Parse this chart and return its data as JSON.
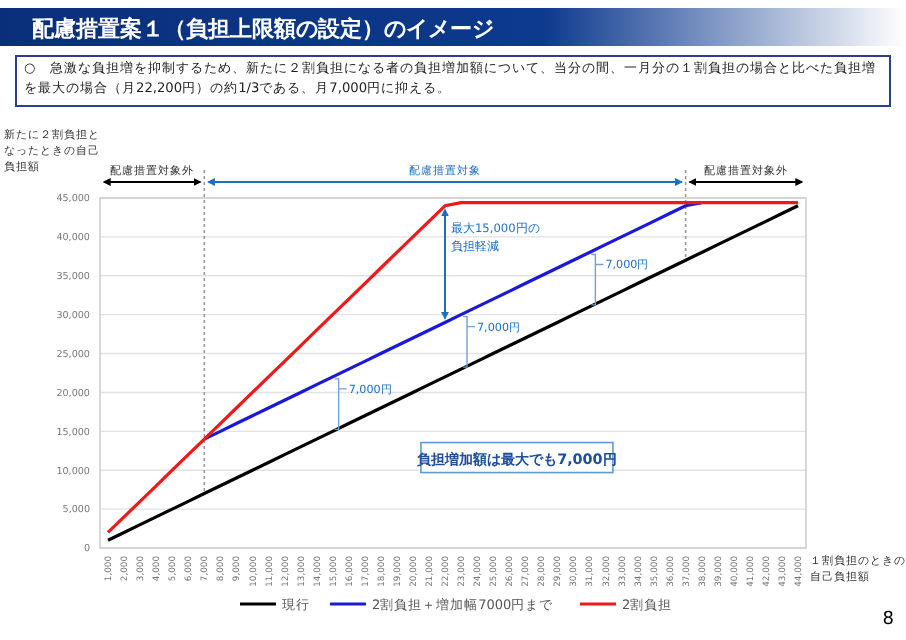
{
  "chart_data": {
    "type": "line",
    "title": "配慮措置案１（負担上限額の設定）のイメージ",
    "subtitle": "○　急激な負担増を抑制するため、新たに２割負担になる者の負担増加額について、当分の間、一月分の１割負担の場合と比べた負担増を最大の場合（月22,200円）の約1/3である、月7,000円に抑える。",
    "ylabel": "新たに２割負担となったときの自己負担額",
    "xlabel": "１割負担のときの自己負担額",
    "categories": [
      "1,000",
      "2,000",
      "3,000",
      "4,000",
      "5,000",
      "6,000",
      "7,000",
      "8,000",
      "9,000",
      "10,000",
      "11,000",
      "12,000",
      "13,000",
      "14,000",
      "15,000",
      "16,000",
      "17,000",
      "18,000",
      "19,000",
      "20,000",
      "21,000",
      "22,000",
      "23,000",
      "24,000",
      "25,000",
      "26,000",
      "27,000",
      "28,000",
      "29,000",
      "30,000",
      "31,000",
      "32,000",
      "33,000",
      "34,000",
      "35,000",
      "36,000",
      "37,000",
      "38,000",
      "39,000",
      "40,000",
      "41,000",
      "42,000",
      "43,000",
      "44,000"
    ],
    "series": [
      {
        "name": "現行",
        "color": "#000000",
        "values": [
          1000,
          2000,
          3000,
          4000,
          5000,
          6000,
          7000,
          8000,
          9000,
          10000,
          11000,
          12000,
          13000,
          14000,
          15000,
          16000,
          17000,
          18000,
          19000,
          20000,
          21000,
          22000,
          23000,
          24000,
          25000,
          26000,
          27000,
          28000,
          29000,
          30000,
          31000,
          32000,
          33000,
          34000,
          35000,
          36000,
          37000,
          38000,
          39000,
          40000,
          41000,
          42000,
          43000,
          44000
        ]
      },
      {
        "name": "2割負担＋増加幅7000円まで",
        "color": "#1a1ad6",
        "values": [
          null,
          null,
          null,
          null,
          null,
          null,
          14000,
          15000,
          16000,
          17000,
          18000,
          19000,
          20000,
          21000,
          22000,
          23000,
          24000,
          25000,
          26000,
          27000,
          28000,
          29000,
          30000,
          31000,
          32000,
          33000,
          34000,
          35000,
          36000,
          37000,
          38000,
          39000,
          40000,
          41000,
          42000,
          43000,
          44000,
          44400,
          null,
          null,
          null,
          null,
          null,
          null
        ]
      },
      {
        "name": "2割負担",
        "color": "#f01818",
        "values": [
          2000,
          4000,
          6000,
          8000,
          10000,
          12000,
          14000,
          16000,
          18000,
          20000,
          22000,
          24000,
          26000,
          28000,
          30000,
          32000,
          34000,
          36000,
          38000,
          40000,
          42000,
          44000,
          44400,
          44400,
          44400,
          44400,
          44400,
          44400,
          44400,
          44400,
          44400,
          44400,
          44400,
          44400,
          44400,
          44400,
          44400,
          44400,
          44400,
          44400,
          44400,
          44400,
          44400,
          44400
        ]
      }
    ],
    "ylim": [
      0,
      45000
    ],
    "yticks": [
      0,
      {
        "value": 5000,
        "label": "5,000"
      },
      {
        "value": 10000,
        "label": "10,000"
      },
      {
        "value": 15000,
        "label": "15,000"
      },
      {
        "value": 20000,
        "label": "20,000"
      },
      {
        "value": 25000,
        "label": "25,000"
      },
      {
        "value": 30000,
        "label": "30,000"
      },
      {
        "value": 35000,
        "label": "35,000"
      },
      {
        "value": 40000,
        "label": "40,000"
      },
      {
        "value": 45000,
        "label": "45,000"
      }
    ],
    "grid": "y",
    "legend": "bottom",
    "line_style": "solid",
    "ref_lines": [
      {
        "axis": "x",
        "value": "7,000",
        "color": "#999999",
        "line_style": "dotted"
      },
      {
        "axis": "x",
        "value": "37,000",
        "color": "#999999",
        "line_style": "dotted"
      }
    ],
    "annotations": [
      "配慮措置対象外",
      "配慮措置対象",
      "配慮措置対象外",
      {
        "text": "最大15,000円の負担軽減",
        "x": "22,000",
        "y": 44000
      },
      {
        "text": "7,000円",
        "x": "15,000",
        "y": 22000
      },
      {
        "text": "7,000円",
        "x": "23,000",
        "y": 30000
      },
      {
        "text": "7,000円",
        "x": "31,000",
        "y": 38000
      },
      "負担増加額は最大でも7,000円",
      "8"
    ]
  }
}
